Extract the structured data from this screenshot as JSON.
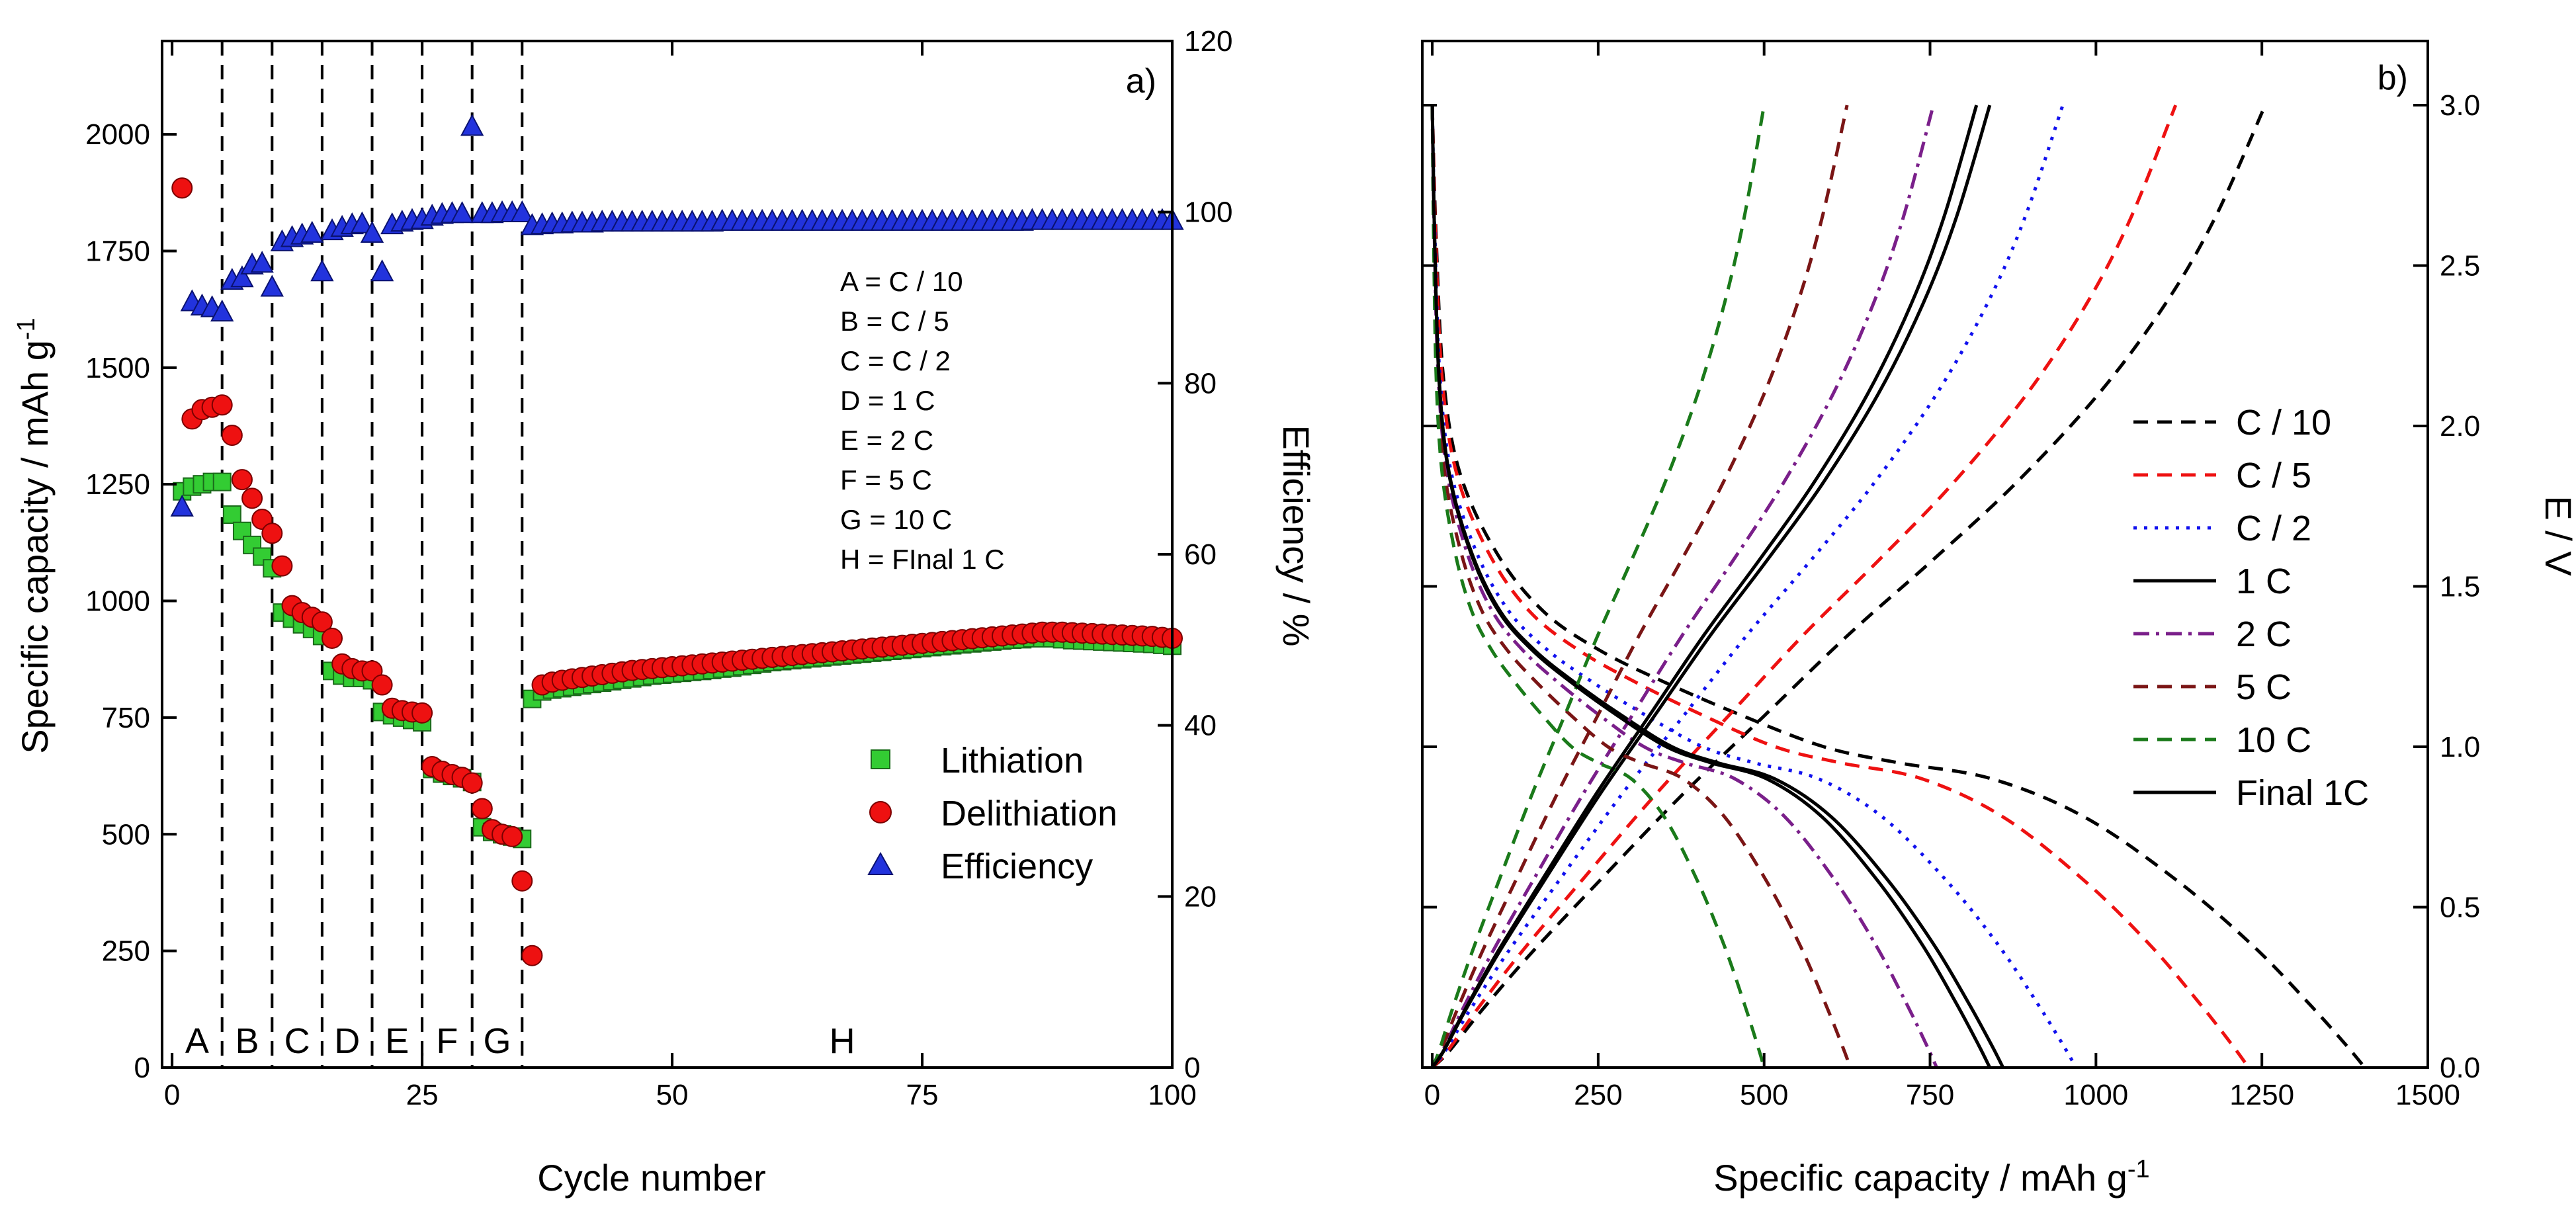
{
  "chart_data": [
    {
      "panel_label": "a)",
      "type": "scatter",
      "xlabel": "Cycle number",
      "ylabel": "Specific capacity / mAh g",
      "ylabel_sup": "-1",
      "y2label": "Efficiency / %",
      "xlim": [
        -1,
        100
      ],
      "ylim": [
        0,
        2200
      ],
      "y2lim": [
        0,
        120
      ],
      "xticks": [
        "0",
        "25",
        "50",
        "75",
        "100"
      ],
      "xtick_values": [
        0,
        25,
        50,
        75,
        100
      ],
      "yticks": [
        "0",
        "250",
        "500",
        "750",
        "1000",
        "1250",
        "1500",
        "1750",
        "2000"
      ],
      "ytick_values": [
        0,
        250,
        500,
        750,
        1000,
        1250,
        1500,
        1750,
        2000
      ],
      "y2ticks": [
        "0",
        "20",
        "40",
        "60",
        "80",
        "100",
        "120"
      ],
      "y2tick_values": [
        0,
        20,
        40,
        60,
        80,
        100,
        120
      ],
      "grid": false,
      "dividers_x": [
        5,
        10,
        15,
        20,
        25,
        30,
        35
      ],
      "regions": [
        {
          "label": "A",
          "x": 2.5
        },
        {
          "label": "B",
          "x": 7.5
        },
        {
          "label": "C",
          "x": 12.5
        },
        {
          "label": "D",
          "x": 17.5
        },
        {
          "label": "E",
          "x": 22.5
        },
        {
          "label": "F",
          "x": 27.5
        },
        {
          "label": "G",
          "x": 32.5
        },
        {
          "label": "H",
          "x": 67
        }
      ],
      "rate_notes": [
        "A = C / 10",
        "B = C / 5",
        "C = C / 2",
        "D = 1 C",
        "E = 2 C",
        "F = 5 C",
        "G = 10 C",
        "H = FInal 1 C"
      ],
      "legend_position": "center-right",
      "series": [
        {
          "name": "Lithiation",
          "marker": "square",
          "color": "#33cc33",
          "axis": "left",
          "x": [
            1,
            2,
            3,
            4,
            5,
            6,
            7,
            8,
            9,
            10,
            11,
            12,
            13,
            14,
            15,
            16,
            17,
            18,
            19,
            20,
            21,
            22,
            23,
            24,
            25,
            26,
            27,
            28,
            29,
            30,
            31,
            32,
            33,
            34,
            35,
            36,
            37,
            38,
            39,
            40,
            41,
            42,
            43,
            44,
            45,
            46,
            47,
            48,
            49,
            50,
            51,
            52,
            53,
            54,
            55,
            56,
            57,
            58,
            59,
            60,
            61,
            62,
            63,
            64,
            65,
            66,
            67,
            68,
            69,
            70,
            71,
            72,
            73,
            74,
            75,
            76,
            77,
            78,
            79,
            80,
            81,
            82,
            83,
            84,
            85,
            86,
            87,
            88,
            89,
            90,
            91,
            92,
            93,
            94,
            95,
            96,
            97,
            98,
            99,
            100
          ],
          "y": [
            1235,
            1245,
            1250,
            1255,
            1255,
            1185,
            1150,
            1120,
            1095,
            1070,
            975,
            962,
            950,
            940,
            925,
            850,
            840,
            835,
            835,
            830,
            762,
            755,
            750,
            745,
            740,
            640,
            630,
            625,
            620,
            612,
            515,
            505,
            500,
            495,
            490,
            790,
            806,
            810,
            813,
            816,
            819,
            822,
            825,
            828,
            831,
            834,
            837,
            840,
            842,
            844,
            846,
            848,
            850,
            852,
            855,
            857,
            860,
            863,
            866,
            869,
            871,
            873,
            875,
            877,
            879,
            881,
            883,
            885,
            887,
            889,
            891,
            893,
            895,
            897,
            899,
            901,
            903,
            905,
            907,
            909,
            911,
            913,
            915,
            917,
            918,
            920,
            920,
            920,
            918,
            916,
            915,
            914,
            913,
            912,
            911,
            910,
            909,
            908,
            906,
            904
          ]
        },
        {
          "name": "Delithiation",
          "marker": "circle",
          "color": "#ee1111",
          "axis": "left",
          "x": [
            1,
            2,
            3,
            4,
            5,
            6,
            7,
            8,
            9,
            10,
            11,
            12,
            13,
            14,
            15,
            16,
            17,
            18,
            19,
            20,
            21,
            22,
            23,
            24,
            25,
            26,
            27,
            28,
            29,
            30,
            31,
            32,
            33,
            34,
            35,
            36,
            37,
            38,
            39,
            40,
            41,
            42,
            43,
            44,
            45,
            46,
            47,
            48,
            49,
            50,
            51,
            52,
            53,
            54,
            55,
            56,
            57,
            58,
            59,
            60,
            61,
            62,
            63,
            64,
            65,
            66,
            67,
            68,
            69,
            70,
            71,
            72,
            73,
            74,
            75,
            76,
            77,
            78,
            79,
            80,
            81,
            82,
            83,
            84,
            85,
            86,
            87,
            88,
            89,
            90,
            91,
            92,
            93,
            94,
            95,
            96,
            97,
            98,
            99,
            100
          ],
          "y": [
            1885,
            1390,
            1410,
            1415,
            1420,
            1355,
            1260,
            1220,
            1175,
            1145,
            1075,
            990,
            975,
            965,
            955,
            920,
            865,
            855,
            850,
            850,
            820,
            770,
            765,
            762,
            760,
            645,
            635,
            628,
            622,
            610,
            555,
            510,
            500,
            495,
            400,
            240,
            820,
            826,
            830,
            833,
            836,
            839,
            842,
            845,
            848,
            851,
            853,
            855,
            857,
            859,
            861,
            863,
            865,
            867,
            869,
            871,
            873,
            875,
            877,
            879,
            881,
            883,
            885,
            887,
            889,
            891,
            893,
            895,
            897,
            899,
            901,
            903,
            905,
            907,
            909,
            911,
            913,
            915,
            917,
            919,
            921,
            923,
            925,
            927,
            929,
            931,
            933,
            933,
            933,
            932,
            931,
            930,
            929,
            928,
            927,
            926,
            925,
            924,
            922,
            920
          ]
        },
        {
          "name": "Efficiency",
          "marker": "triangle",
          "color": "#2233dd",
          "axis": "right",
          "x": [
            1,
            2,
            3,
            4,
            5,
            6,
            7,
            8,
            9,
            10,
            11,
            12,
            13,
            14,
            15,
            16,
            17,
            18,
            19,
            20,
            21,
            22,
            23,
            24,
            25,
            26,
            27,
            28,
            29,
            30,
            31,
            32,
            33,
            34,
            35,
            36,
            37,
            38,
            39,
            40,
            41,
            42,
            43,
            44,
            45,
            46,
            47,
            48,
            49,
            50,
            51,
            52,
            53,
            54,
            55,
            56,
            57,
            58,
            59,
            60,
            61,
            62,
            63,
            64,
            65,
            66,
            67,
            68,
            69,
            70,
            71,
            72,
            73,
            74,
            75,
            76,
            77,
            78,
            79,
            80,
            81,
            82,
            83,
            84,
            85,
            86,
            87,
            88,
            89,
            90,
            91,
            92,
            93,
            94,
            95,
            96,
            97,
            98,
            99,
            100
          ],
          "y": [
            65.5,
            89.5,
            89,
            88.8,
            88.3,
            92,
            92.3,
            93.8,
            94,
            91.2,
            96.5,
            97,
            97.3,
            97.5,
            93,
            97.8,
            98.2,
            98.5,
            98.6,
            97.5,
            93,
            98.5,
            98.8,
            99,
            99.1,
            99.5,
            99.7,
            99.8,
            99.8,
            110,
            99.8,
            99.8,
            99.9,
            99.9,
            99.9,
            98.4,
            98.5,
            98.6,
            98.6,
            98.7,
            98.7,
            98.7,
            98.8,
            98.8,
            98.8,
            98.8,
            98.8,
            98.8,
            98.8,
            98.8,
            98.8,
            98.8,
            98.8,
            98.8,
            98.9,
            98.9,
            98.9,
            98.9,
            98.9,
            98.9,
            98.9,
            98.9,
            98.9,
            98.9,
            98.9,
            98.9,
            98.9,
            98.9,
            98.9,
            98.9,
            98.9,
            98.9,
            98.9,
            98.9,
            98.9,
            98.9,
            98.9,
            98.9,
            98.9,
            98.9,
            98.9,
            98.9,
            98.9,
            98.9,
            98.9,
            99,
            99,
            99,
            99,
            99,
            99,
            99,
            99,
            99,
            99,
            99,
            99,
            99,
            99,
            99
          ]
        }
      ]
    },
    {
      "panel_label": "b)",
      "type": "line",
      "xlabel": "Specific capacity / mAh g",
      "xlabel_sup": "-1",
      "ylabel": "E / V",
      "ylabel_side": "right",
      "xlim": [
        -15,
        1500
      ],
      "ylim": [
        0,
        3.2
      ],
      "xticks": [
        "0",
        "250",
        "500",
        "750",
        "1000",
        "1250",
        "1500"
      ],
      "xtick_values": [
        0,
        250,
        500,
        750,
        1000,
        1250,
        1500
      ],
      "yticks": [
        "0.0",
        "0.5",
        "1.0",
        "1.5",
        "2.0",
        "2.5",
        "3.0"
      ],
      "ytick_values": [
        0,
        0.5,
        1.0,
        1.5,
        2.0,
        2.5,
        3.0
      ],
      "grid": false,
      "legend_position": "center-right",
      "series": [
        {
          "name": "C / 10",
          "color": "#000000",
          "dash": "dashed",
          "discharge_end": 1405,
          "charge_end": 1255
        },
        {
          "name": "C / 5",
          "color": "#ee1111",
          "dash": "dashed",
          "discharge_end": 1230,
          "charge_end": 1120
        },
        {
          "name": "C / 2",
          "color": "#1111ee",
          "dash": "dotted",
          "discharge_end": 970,
          "charge_end": 950
        },
        {
          "name": "1 C",
          "color": "#000000",
          "dash": "solid",
          "discharge_end": 860,
          "charge_end": 840
        },
        {
          "name": "2 C",
          "color": "#7a1f8a",
          "dash": "dashdot",
          "discharge_end": 760,
          "charge_end": 755
        },
        {
          "name": "5 C",
          "color": "#7a1515",
          "dash": "dashed",
          "discharge_end": 630,
          "charge_end": 625
        },
        {
          "name": "10 C",
          "color": "#1a7a1a",
          "dash": "dashed",
          "discharge_end": 500,
          "charge_end": 500
        },
        {
          "name": "Final 1C",
          "color": "#000000",
          "dash": "solid",
          "discharge_end": 840,
          "charge_end": 820
        }
      ]
    }
  ]
}
